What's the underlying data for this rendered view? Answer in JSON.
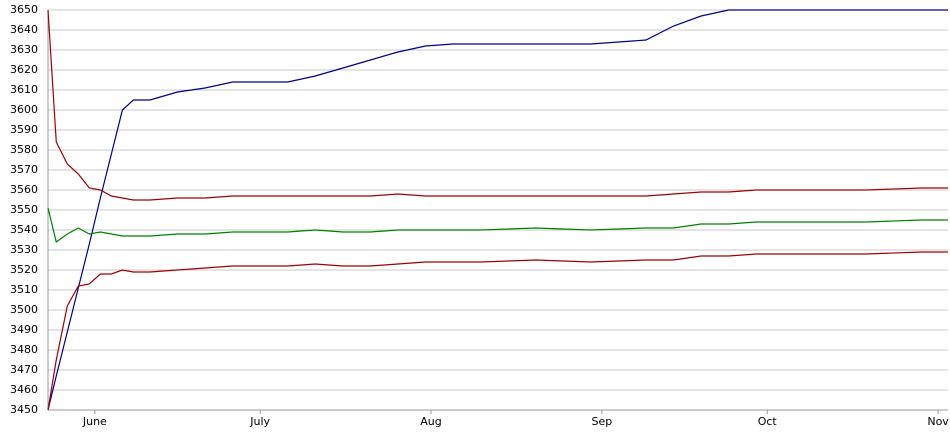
{
  "chart_data": {
    "type": "line",
    "x": [
      -8.5,
      -7,
      -5,
      -3,
      -1,
      1,
      3,
      5,
      7,
      10,
      15,
      20,
      25,
      30,
      35,
      40,
      45,
      50,
      55,
      60,
      65,
      70,
      80,
      90,
      100,
      105,
      110,
      115,
      120,
      130,
      140,
      150,
      154.8
    ],
    "series": [
      {
        "color": "#00008b",
        "values": [
          3450,
          3467,
          3489,
          3511,
          3533,
          3556,
          3578,
          3600,
          3605,
          3605,
          3609,
          3611,
          3614,
          3614,
          3614,
          3617,
          3621,
          3625,
          3629,
          3632,
          3633,
          3633,
          3633,
          3633,
          3635,
          3642,
          3647,
          3650,
          3650,
          3650,
          3650,
          3650,
          3650
        ]
      },
      {
        "color": "#a00000",
        "values": [
          3650,
          3584,
          3573,
          3568,
          3561,
          3560,
          3557,
          3556,
          3555,
          3555,
          3556,
          3556,
          3557,
          3557,
          3557,
          3557,
          3557,
          3557,
          3558,
          3557,
          3557,
          3557,
          3557,
          3557,
          3557,
          3558,
          3559,
          3559,
          3560,
          3560,
          3560,
          3561,
          3561
        ]
      },
      {
        "color": "#008000",
        "values": [
          3551,
          3534,
          3538,
          3541,
          3538,
          3539,
          3538,
          3537,
          3537,
          3537,
          3538,
          3538,
          3539,
          3539,
          3539,
          3540,
          3539,
          3539,
          3540,
          3540,
          3540,
          3540,
          3541,
          3540,
          3541,
          3541,
          3543,
          3543,
          3544,
          3544,
          3544,
          3545,
          3545
        ]
      },
      {
        "color": "#a00000",
        "values": [
          3450,
          3475,
          3502,
          3512,
          3513,
          3518,
          3518,
          3520,
          3519,
          3519,
          3520,
          3521,
          3522,
          3522,
          3522,
          3523,
          3522,
          3522,
          3523,
          3524,
          3524,
          3524,
          3525,
          3524,
          3525,
          3525,
          3527,
          3527,
          3528,
          3528,
          3528,
          3529,
          3529
        ]
      }
    ],
    "xlim": [
      -8.5,
      154.8
    ],
    "xticks": [
      {
        "value": 0,
        "label": "June"
      },
      {
        "value": 30,
        "label": "July"
      },
      {
        "value": 61,
        "label": "Aug"
      },
      {
        "value": 92,
        "label": "Sep"
      },
      {
        "value": 122,
        "label": "Oct"
      },
      {
        "value": 153,
        "label": "Nov"
      }
    ],
    "ylim": [
      3450,
      3650
    ],
    "yticks": [
      3450,
      3460,
      3470,
      3480,
      3490,
      3500,
      3510,
      3520,
      3530,
      3540,
      3550,
      3560,
      3570,
      3580,
      3590,
      3600,
      3610,
      3620,
      3630,
      3640,
      3650
    ],
    "grid": true
  }
}
